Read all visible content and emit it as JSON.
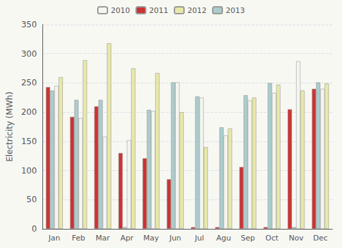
{
  "chart_data": {
    "type": "bar",
    "categories": [
      "Jan",
      "Feb",
      "Mar",
      "Apr",
      "May",
      "Jun",
      "Jul",
      "Agu",
      "Sep",
      "Oct",
      "Nov",
      "Dec"
    ],
    "series": [
      {
        "name": "2011",
        "color": "#CC3333",
        "values": [
          243,
          192,
          210,
          130,
          121,
          85,
          3,
          3,
          106,
          3,
          205,
          240
        ]
      },
      {
        "name": "2013",
        "color": "#AACCCC",
        "values": [
          237,
          221,
          221,
          3,
          204,
          251,
          227,
          174,
          229,
          250,
          3,
          251
        ]
      },
      {
        "name": "2010",
        "color": "#F5F5F0",
        "values": [
          245,
          190,
          158,
          152,
          202,
          251,
          225,
          160,
          220,
          233,
          287,
          240
        ]
      },
      {
        "name": "2012",
        "color": "#E8E8A8",
        "values": [
          260,
          289,
          318,
          275,
          267,
          200,
          140,
          172,
          225,
          247,
          237,
          249
        ]
      }
    ],
    "ylabel": "Electricity (MWh)",
    "ylim": [
      0,
      350
    ],
    "yticks": [
      0,
      50,
      100,
      150,
      200,
      250,
      300,
      350
    ],
    "grid": true,
    "legend": "upper center"
  }
}
